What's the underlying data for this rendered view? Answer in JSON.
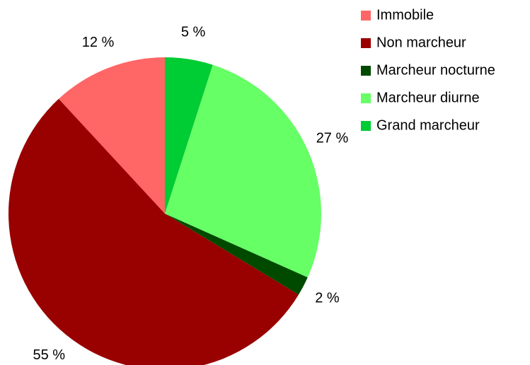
{
  "chart_data": {
    "type": "pie",
    "categories": [
      "Immobile",
      "Non marcheur",
      "Marcheur nocturne",
      "Marcheur diurne",
      "Grand marcheur"
    ],
    "values": [
      12,
      55,
      2,
      27,
      5
    ],
    "value_labels": [
      "12 %",
      "55 %",
      "2 %",
      "27 %",
      "5 %"
    ],
    "colors": [
      "#ff6666",
      "#990000",
      "#004a00",
      "#66ff66",
      "#00cc33"
    ],
    "legend": "right"
  }
}
